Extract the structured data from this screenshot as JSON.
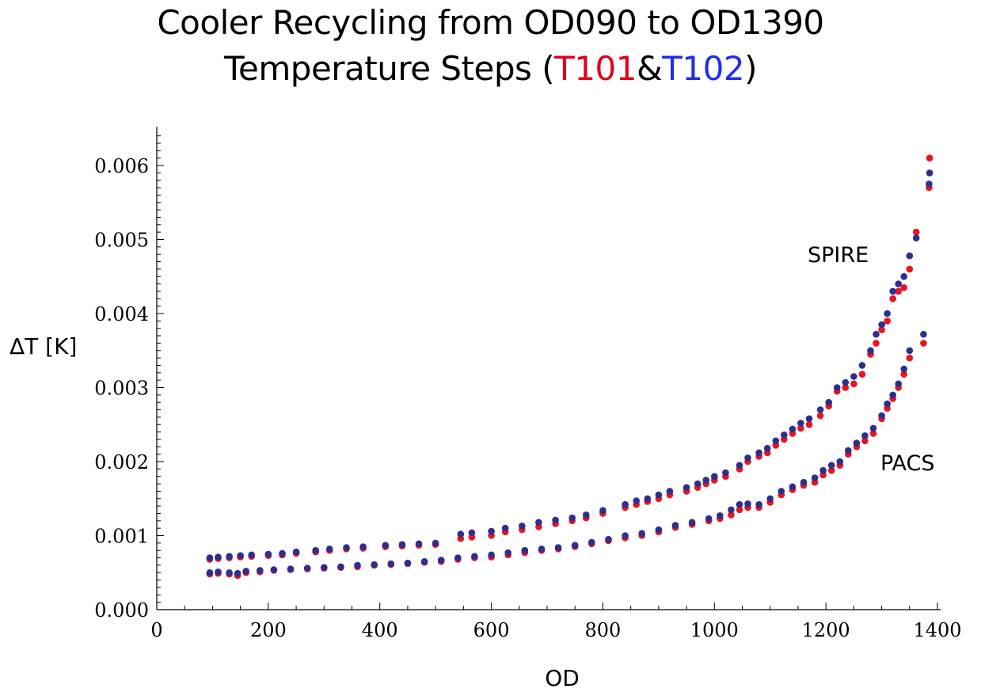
{
  "title_line1": "Cooler Recycling from OD090 to OD1390",
  "title_line2_prefix": "Temperature Steps (",
  "title_line2_t101": "T101",
  "title_line2_amp": "&",
  "title_line2_t102": "T102",
  "title_line2_suffix": ")",
  "chart_data": {
    "type": "scatter",
    "xlabel": "OD",
    "ylabel": "ΔT [K]",
    "xlim": [
      0,
      1400
    ],
    "ylim": [
      0,
      0.0065
    ],
    "x_ticks": [
      "0",
      "200",
      "400",
      "600",
      "800",
      "1000",
      "1200",
      "1400"
    ],
    "y_ticks": [
      "0.000",
      "0.001",
      "0.002",
      "0.003",
      "0.004",
      "0.005",
      "0.006"
    ],
    "annotations": [
      "SPIRE",
      "PACS"
    ],
    "colors": {
      "T101": "#e8141e",
      "T102": "#2e2e8e"
    },
    "series": [
      {
        "group": "SPIRE",
        "sensor": "T101",
        "points": [
          [
            95,
            0.00068
          ],
          [
            110,
            0.00069
          ],
          [
            130,
            0.0007
          ],
          [
            150,
            0.00071
          ],
          [
            170,
            0.00072
          ],
          [
            200,
            0.00073
          ],
          [
            225,
            0.00074
          ],
          [
            250,
            0.00076
          ],
          [
            285,
            0.00078
          ],
          [
            310,
            0.0008
          ],
          [
            340,
            0.00082
          ],
          [
            370,
            0.00083
          ],
          [
            410,
            0.00085
          ],
          [
            440,
            0.00086
          ],
          [
            470,
            0.00087
          ],
          [
            500,
            0.00088
          ],
          [
            545,
            0.00096
          ],
          [
            565,
            0.00098
          ],
          [
            600,
            0.001
          ],
          [
            625,
            0.00105
          ],
          [
            655,
            0.00108
          ],
          [
            685,
            0.00112
          ],
          [
            715,
            0.00116
          ],
          [
            745,
            0.0012
          ],
          [
            770,
            0.00124
          ],
          [
            800,
            0.0013
          ],
          [
            840,
            0.00138
          ],
          [
            860,
            0.00142
          ],
          [
            880,
            0.00146
          ],
          [
            900,
            0.0015
          ],
          [
            920,
            0.00155
          ],
          [
            950,
            0.0016
          ],
          [
            970,
            0.00165
          ],
          [
            985,
            0.0017
          ],
          [
            1000,
            0.00175
          ],
          [
            1020,
            0.0018
          ],
          [
            1045,
            0.0019
          ],
          [
            1060,
            0.002
          ],
          [
            1080,
            0.00207
          ],
          [
            1095,
            0.00212
          ],
          [
            1110,
            0.00222
          ],
          [
            1125,
            0.0023
          ],
          [
            1140,
            0.00238
          ],
          [
            1155,
            0.00245
          ],
          [
            1170,
            0.0025
          ],
          [
            1190,
            0.00262
          ],
          [
            1205,
            0.00275
          ],
          [
            1220,
            0.00295
          ],
          [
            1235,
            0.003
          ],
          [
            1250,
            0.00305
          ],
          [
            1265,
            0.00318
          ],
          [
            1280,
            0.00345
          ],
          [
            1290,
            0.0036
          ],
          [
            1300,
            0.00378
          ],
          [
            1310,
            0.0039
          ],
          [
            1320,
            0.0042
          ],
          [
            1330,
            0.0043
          ],
          [
            1340,
            0.00435
          ],
          [
            1350,
            0.0046
          ],
          [
            1362,
            0.0051
          ],
          [
            1385,
            0.0057
          ],
          [
            1386,
            0.0061
          ]
        ]
      },
      {
        "group": "SPIRE",
        "sensor": "T102",
        "points": [
          [
            95,
            0.0007
          ],
          [
            110,
            0.00071
          ],
          [
            130,
            0.00072
          ],
          [
            150,
            0.00073
          ],
          [
            170,
            0.00074
          ],
          [
            200,
            0.00075
          ],
          [
            225,
            0.00076
          ],
          [
            250,
            0.00078
          ],
          [
            285,
            0.0008
          ],
          [
            310,
            0.00082
          ],
          [
            340,
            0.00084
          ],
          [
            370,
            0.00085
          ],
          [
            410,
            0.00087
          ],
          [
            440,
            0.00088
          ],
          [
            470,
            0.00089
          ],
          [
            500,
            0.0009
          ],
          [
            545,
            0.00102
          ],
          [
            565,
            0.00104
          ],
          [
            600,
            0.00106
          ],
          [
            625,
            0.0011
          ],
          [
            655,
            0.00113
          ],
          [
            685,
            0.00118
          ],
          [
            715,
            0.00121
          ],
          [
            745,
            0.00124
          ],
          [
            770,
            0.00128
          ],
          [
            800,
            0.00134
          ],
          [
            840,
            0.00142
          ],
          [
            860,
            0.00147
          ],
          [
            880,
            0.0015
          ],
          [
            900,
            0.00155
          ],
          [
            920,
            0.0016
          ],
          [
            950,
            0.00165
          ],
          [
            970,
            0.0017
          ],
          [
            985,
            0.00175
          ],
          [
            1000,
            0.0018
          ],
          [
            1020,
            0.00185
          ],
          [
            1045,
            0.00195
          ],
          [
            1060,
            0.00205
          ],
          [
            1080,
            0.00212
          ],
          [
            1095,
            0.00218
          ],
          [
            1110,
            0.00228
          ],
          [
            1125,
            0.00236
          ],
          [
            1140,
            0.00244
          ],
          [
            1155,
            0.00252
          ],
          [
            1170,
            0.00258
          ],
          [
            1190,
            0.0027
          ],
          [
            1205,
            0.0028
          ],
          [
            1220,
            0.003
          ],
          [
            1235,
            0.00307
          ],
          [
            1250,
            0.00315
          ],
          [
            1265,
            0.0033
          ],
          [
            1280,
            0.0035
          ],
          [
            1290,
            0.00372
          ],
          [
            1300,
            0.00385
          ],
          [
            1310,
            0.004
          ],
          [
            1320,
            0.0043
          ],
          [
            1330,
            0.0044
          ],
          [
            1340,
            0.0045
          ],
          [
            1350,
            0.00478
          ],
          [
            1362,
            0.00502
          ],
          [
            1385,
            0.00575
          ],
          [
            1386,
            0.0059
          ]
        ]
      },
      {
        "group": "PACS",
        "sensor": "T101",
        "points": [
          [
            95,
            0.00048
          ],
          [
            110,
            0.00049
          ],
          [
            130,
            0.00048
          ],
          [
            145,
            0.00046
          ],
          [
            160,
            0.0005
          ],
          [
            185,
            0.00051
          ],
          [
            210,
            0.00053
          ],
          [
            240,
            0.00054
          ],
          [
            270,
            0.00055
          ],
          [
            300,
            0.00056
          ],
          [
            330,
            0.00057
          ],
          [
            360,
            0.00058
          ],
          [
            390,
            0.0006
          ],
          [
            420,
            0.00061
          ],
          [
            450,
            0.00062
          ],
          [
            480,
            0.00064
          ],
          [
            510,
            0.00065
          ],
          [
            540,
            0.00068
          ],
          [
            570,
            0.0007
          ],
          [
            600,
            0.00071
          ],
          [
            630,
            0.00074
          ],
          [
            660,
            0.00077
          ],
          [
            690,
            0.0008
          ],
          [
            720,
            0.00082
          ],
          [
            750,
            0.00085
          ],
          [
            780,
            0.00089
          ],
          [
            810,
            0.00093
          ],
          [
            840,
            0.00097
          ],
          [
            870,
            0.001
          ],
          [
            900,
            0.00105
          ],
          [
            930,
            0.00111
          ],
          [
            960,
            0.00115
          ],
          [
            990,
            0.0012
          ],
          [
            1010,
            0.00123
          ],
          [
            1030,
            0.00128
          ],
          [
            1045,
            0.00135
          ],
          [
            1060,
            0.00138
          ],
          [
            1080,
            0.00138
          ],
          [
            1100,
            0.00145
          ],
          [
            1120,
            0.00155
          ],
          [
            1140,
            0.00162
          ],
          [
            1160,
            0.00168
          ],
          [
            1180,
            0.00172
          ],
          [
            1195,
            0.00182
          ],
          [
            1210,
            0.00188
          ],
          [
            1225,
            0.00195
          ],
          [
            1240,
            0.0021
          ],
          [
            1255,
            0.0022
          ],
          [
            1270,
            0.00228
          ],
          [
            1285,
            0.00238
          ],
          [
            1300,
            0.00258
          ],
          [
            1310,
            0.00272
          ],
          [
            1320,
            0.00285
          ],
          [
            1330,
            0.003
          ],
          [
            1340,
            0.00318
          ],
          [
            1350,
            0.0034
          ],
          [
            1375,
            0.0036
          ]
        ]
      },
      {
        "group": "PACS",
        "sensor": "T102",
        "points": [
          [
            95,
            0.0005
          ],
          [
            110,
            0.00051
          ],
          [
            130,
            0.0005
          ],
          [
            145,
            0.00049
          ],
          [
            160,
            0.00052
          ],
          [
            185,
            0.00053
          ],
          [
            210,
            0.00054
          ],
          [
            240,
            0.00055
          ],
          [
            270,
            0.00056
          ],
          [
            300,
            0.00057
          ],
          [
            330,
            0.00058
          ],
          [
            360,
            0.0006
          ],
          [
            390,
            0.00061
          ],
          [
            420,
            0.00062
          ],
          [
            450,
            0.00063
          ],
          [
            480,
            0.00065
          ],
          [
            510,
            0.00067
          ],
          [
            540,
            0.0007
          ],
          [
            570,
            0.00072
          ],
          [
            600,
            0.00074
          ],
          [
            630,
            0.00077
          ],
          [
            660,
            0.0008
          ],
          [
            690,
            0.00082
          ],
          [
            720,
            0.00084
          ],
          [
            750,
            0.00087
          ],
          [
            780,
            0.00091
          ],
          [
            810,
            0.00095
          ],
          [
            840,
            0.001
          ],
          [
            870,
            0.00103
          ],
          [
            900,
            0.00108
          ],
          [
            930,
            0.00114
          ],
          [
            960,
            0.00118
          ],
          [
            990,
            0.00123
          ],
          [
            1010,
            0.00127
          ],
          [
            1030,
            0.00135
          ],
          [
            1045,
            0.00142
          ],
          [
            1060,
            0.00143
          ],
          [
            1080,
            0.00142
          ],
          [
            1100,
            0.0015
          ],
          [
            1120,
            0.0016
          ],
          [
            1140,
            0.00166
          ],
          [
            1160,
            0.00172
          ],
          [
            1180,
            0.00178
          ],
          [
            1195,
            0.00188
          ],
          [
            1210,
            0.00195
          ],
          [
            1225,
            0.002
          ],
          [
            1240,
            0.00215
          ],
          [
            1255,
            0.00225
          ],
          [
            1270,
            0.00235
          ],
          [
            1285,
            0.00245
          ],
          [
            1300,
            0.00262
          ],
          [
            1310,
            0.00278
          ],
          [
            1320,
            0.0029
          ],
          [
            1330,
            0.00305
          ],
          [
            1340,
            0.00325
          ],
          [
            1350,
            0.0035
          ],
          [
            1375,
            0.00372
          ]
        ]
      }
    ]
  }
}
